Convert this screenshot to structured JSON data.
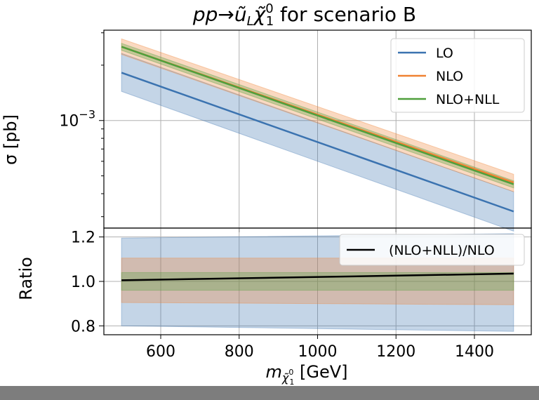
{
  "chart_data": [
    {
      "type": "line",
      "panel": "main",
      "title_parts": {
        "process": "pp→ũ",
        "sub_l": "L",
        "chi": "χ̃",
        "chi_sup": "0",
        "chi_sub": "1",
        "rest": " for scenario B"
      },
      "xlabel": "",
      "ylabel": "σ [pb]",
      "y_scale": "log",
      "ylim": [
        0.00026,
        0.0031
      ],
      "xlim": [
        455,
        1545
      ],
      "x_ticks": [
        600,
        800,
        1000,
        1200,
        1400
      ],
      "y_tick_labels": [
        {
          "value": 0.001,
          "base": "10",
          "exp": "−3"
        }
      ],
      "grid": true,
      "legend_position": "top-right",
      "x": [
        500,
        1500
      ],
      "series": [
        {
          "name": "LO",
          "color": "#3b73b0",
          "values": [
            0.00182,
            0.00032
          ],
          "band_low": [
            0.00144,
            0.00025
          ],
          "band_high": [
            0.00232,
            0.00041
          ]
        },
        {
          "name": "NLO",
          "color": "#f08232",
          "values": [
            0.00252,
            0.00046
          ],
          "band_low": [
            0.00229,
            0.00041
          ],
          "band_high": [
            0.00278,
            0.00051
          ]
        },
        {
          "name": "NLO+NLL",
          "color": "#4f9f3c",
          "values": [
            0.00252,
            0.00045
          ],
          "band_low": [
            0.00241,
            0.00043
          ],
          "band_high": [
            0.00263,
            0.00047
          ]
        }
      ]
    },
    {
      "type": "line",
      "panel": "ratio",
      "xlabel_parts": {
        "m": "m",
        "chi": "χ̃",
        "chi_sup": "0",
        "chi_sub": "1",
        "unit": " [GeV]"
      },
      "ylabel": "Ratio",
      "xlim": [
        455,
        1545
      ],
      "ylim": [
        0.76,
        1.24
      ],
      "x_ticks": [
        600,
        800,
        1000,
        1200,
        1400
      ],
      "y_ticks": [
        0.8,
        1.0,
        1.2
      ],
      "y_tick_labels": [
        "0.8",
        "1.0",
        "1.2"
      ],
      "x_tick_labels": [
        "600",
        "800",
        "1000",
        "1200",
        "1400"
      ],
      "grid": true,
      "legend_position": "top-right",
      "x": [
        500,
        1500
      ],
      "series": [
        {
          "name": "(NLO+NLL)/NLO",
          "color": "#000000",
          "values": [
            1.005,
            1.035
          ]
        }
      ],
      "bands": [
        {
          "color": "#3b73b0",
          "low": [
            0.8,
            0.775
          ],
          "high": [
            1.195,
            1.215
          ]
        },
        {
          "color": "#f08232",
          "low": [
            0.905,
            0.895
          ],
          "high": [
            1.105,
            1.105
          ]
        },
        {
          "color": "#4f9f3c",
          "low": [
            0.96,
            0.96
          ],
          "high": [
            1.04,
            1.04
          ]
        }
      ]
    }
  ]
}
